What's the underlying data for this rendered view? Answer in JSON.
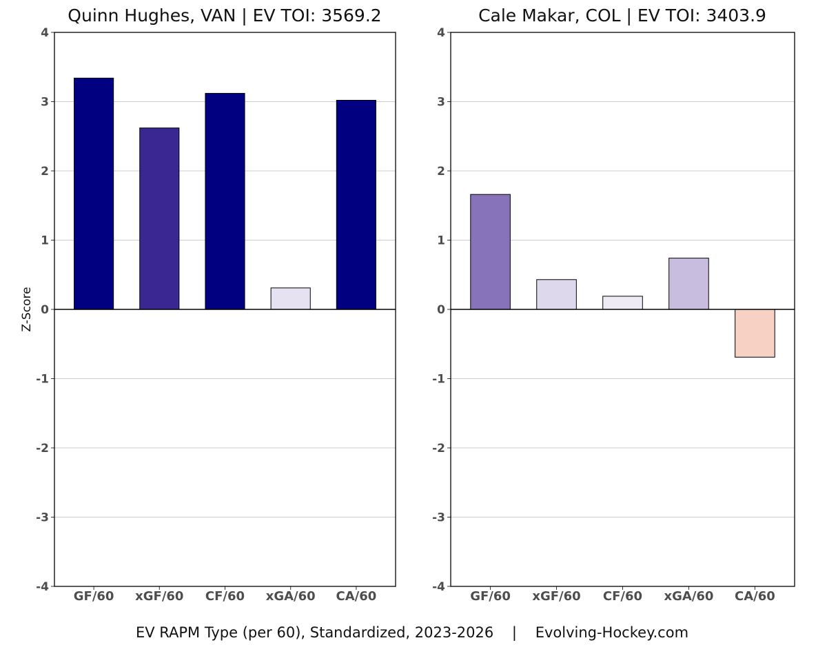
{
  "chart_data": [
    {
      "type": "bar",
      "title": "Quinn Hughes, VAN  |  EV TOI: 3569.2",
      "categories": [
        "GF/60",
        "xGF/60",
        "CF/60",
        "xGA/60",
        "CA/60"
      ],
      "values": [
        3.34,
        2.62,
        3.12,
        0.31,
        3.02
      ],
      "colors": [
        "#000080",
        "#3a2792",
        "#000080",
        "#e7e2f1",
        "#000080"
      ],
      "ylabel": "Z-Score",
      "xlabel": "",
      "ylim": [
        -4,
        4
      ],
      "yticks": [
        4,
        3,
        2,
        1,
        0,
        -1,
        -2,
        -3,
        -4
      ],
      "ytick_labels": [
        "4",
        "3",
        "2",
        "1",
        "0",
        "-1",
        "-2",
        "-3",
        "-4"
      ],
      "grid": true
    },
    {
      "type": "bar",
      "title": "Cale Makar, COL  |  EV TOI: 3403.9",
      "categories": [
        "GF/60",
        "xGF/60",
        "CF/60",
        "xGA/60",
        "CA/60"
      ],
      "values": [
        1.66,
        0.43,
        0.19,
        0.74,
        -0.69
      ],
      "colors": [
        "#8673b9",
        "#ded8ed",
        "#eeebf5",
        "#c8bddf",
        "#f6d1c4"
      ],
      "ylabel": "",
      "xlabel": "",
      "ylim": [
        -4,
        4
      ],
      "yticks": [
        4,
        3,
        2,
        1,
        0,
        -1,
        -2,
        -3,
        -4
      ],
      "ytick_labels": [
        "4",
        "3",
        "2",
        "1",
        "0",
        "-1",
        "-2",
        "-3",
        "-4"
      ],
      "grid": true
    }
  ],
  "caption": {
    "text": "EV RAPM Type (per 60), Standardized, 2023-2026    |    Evolving-Hockey.com"
  }
}
